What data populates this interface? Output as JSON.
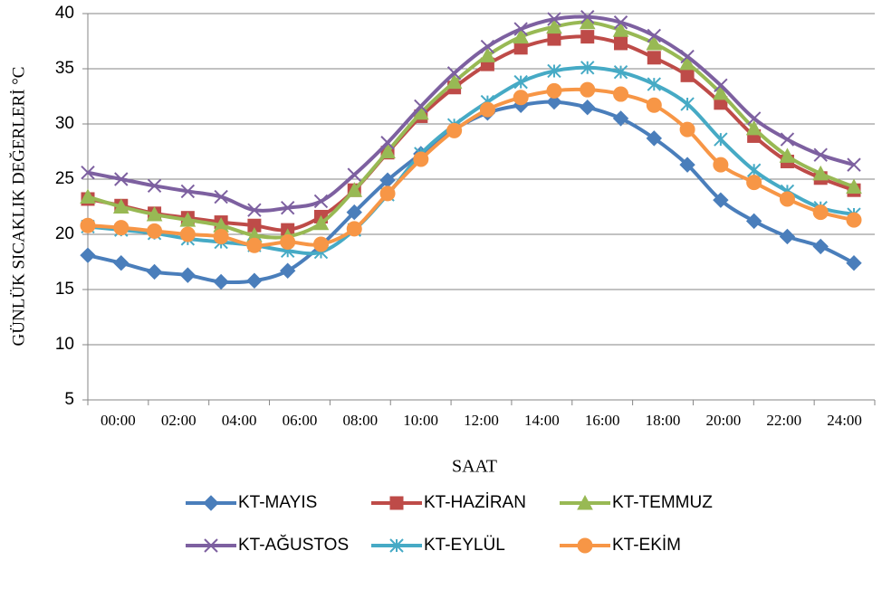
{
  "chart_data": {
    "type": "line",
    "x_label": "SAAT",
    "y_label": "GÜNLÜK SICAKLIK DEĞERLERİ °C",
    "xticklabels": [
      "00:00",
      "02:00",
      "04:00",
      "06:00",
      "08:00",
      "10:00",
      "12:00",
      "14:00",
      "16:00",
      "18:00",
      "20:00",
      "22:00",
      "24:00"
    ],
    "ylim": [
      5,
      40
    ],
    "yticks": [
      5,
      10,
      15,
      20,
      25,
      30,
      35,
      40
    ],
    "grid": true,
    "series": [
      {
        "name": "KT-MAYIS",
        "color": "#4a7ebb",
        "marker": "diamond",
        "values": [
          18.1,
          17.4,
          16.6,
          16.3,
          15.7,
          15.8,
          16.7,
          19.0,
          22.0,
          24.9,
          27.3,
          29.5,
          31.0,
          31.7,
          32.0,
          31.5,
          30.5,
          28.7,
          26.3,
          23.1,
          21.2,
          19.8,
          18.9,
          17.4
        ]
      },
      {
        "name": "KT-HAZİRAN",
        "color": "#be4b48",
        "marker": "square",
        "values": [
          23.2,
          22.6,
          21.9,
          21.5,
          21.1,
          20.8,
          20.4,
          21.6,
          24.0,
          27.4,
          30.7,
          33.3,
          35.4,
          36.9,
          37.7,
          37.9,
          37.3,
          36.0,
          34.4,
          31.9,
          28.9,
          26.6,
          25.1,
          24.0
        ]
      },
      {
        "name": "KT-TEMMUZ",
        "color": "#98b954",
        "marker": "triangle",
        "values": [
          23.4,
          22.5,
          21.8,
          21.3,
          20.8,
          19.9,
          19.8,
          21.0,
          24.0,
          27.5,
          31.0,
          33.8,
          36.2,
          37.9,
          38.8,
          39.2,
          38.5,
          37.3,
          35.5,
          32.8,
          29.6,
          27.1,
          25.5,
          24.3
        ]
      },
      {
        "name": "KT-AĞUSTOS",
        "color": "#7d60a0",
        "marker": "x",
        "values": [
          25.6,
          25.0,
          24.4,
          23.9,
          23.4,
          22.2,
          22.4,
          23.0,
          25.4,
          28.3,
          31.6,
          34.6,
          37.0,
          38.6,
          39.5,
          39.7,
          39.2,
          38.0,
          36.1,
          33.5,
          30.5,
          28.6,
          27.2,
          26.3
        ]
      },
      {
        "name": "KT-EYLÜL",
        "color": "#46aac5",
        "marker": "star",
        "values": [
          20.7,
          20.4,
          20.1,
          19.6,
          19.3,
          19.0,
          18.5,
          18.4,
          20.4,
          23.6,
          27.3,
          29.9,
          32.0,
          33.8,
          34.8,
          35.1,
          34.7,
          33.6,
          31.8,
          28.6,
          25.8,
          23.9,
          22.4,
          21.8
        ]
      },
      {
        "name": "KT-EKİM",
        "color": "#f79646",
        "marker": "circle",
        "values": [
          20.8,
          20.6,
          20.3,
          20.0,
          19.8,
          19.0,
          19.3,
          19.1,
          20.5,
          23.7,
          26.8,
          29.4,
          31.3,
          32.4,
          33.0,
          33.1,
          32.7,
          31.7,
          29.5,
          26.3,
          24.7,
          23.2,
          22.0,
          21.3
        ]
      }
    ]
  }
}
